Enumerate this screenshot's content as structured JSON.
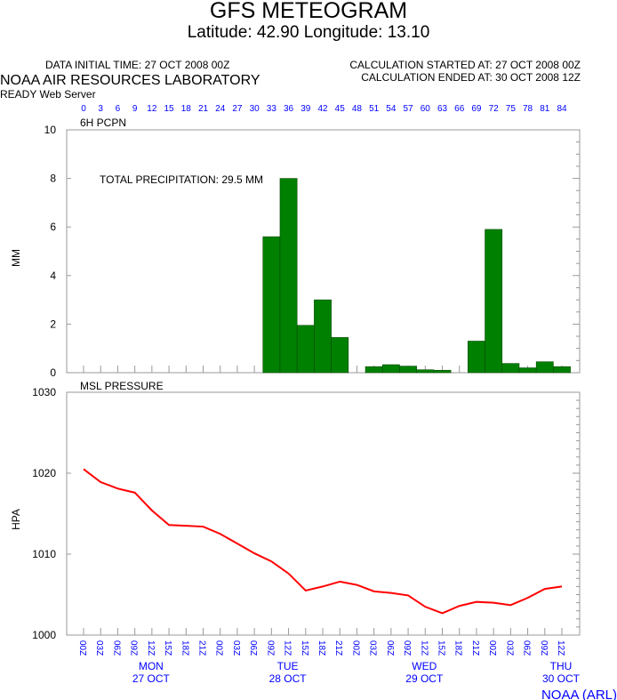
{
  "header": {
    "title": "GFS METEOGRAM",
    "subtitle": "Latitude: 42.90 Longitude:  13.10",
    "data_initial_time": "DATA INITIAL TIME: 27 OCT 2008 00Z",
    "calc_started": "CALCULATION STARTED AT: 27 OCT 2008 00Z",
    "calc_ended": "CALCULATION ENDED AT: 30 OCT 2008 12Z",
    "org": "NOAA AIR RESOURCES LABORATORY",
    "server": "READY Web Server"
  },
  "footer": {
    "credit": "NOAA (ARL)"
  },
  "colors": {
    "bar": "#008000",
    "line": "#ff0000",
    "axis_labels": "#0000ff",
    "frame": "#999999"
  },
  "chart_data": [
    {
      "type": "bar",
      "title": "6H PCPN",
      "ylabel": "MM",
      "annotation": "TOTAL PRECIPITATION:  29.5 MM",
      "ylim": [
        0,
        10
      ],
      "yticks": [
        0,
        2,
        4,
        6,
        8,
        10
      ],
      "x_top_tick_labels": [
        "0",
        "3",
        "6",
        "9",
        "12",
        "15",
        "18",
        "21",
        "24",
        "27",
        "30",
        "33",
        "36",
        "39",
        "42",
        "45",
        "48",
        "51",
        "54",
        "57",
        "60",
        "63",
        "66",
        "69",
        "72",
        "75",
        "78",
        "81",
        "84"
      ],
      "x_hours": [
        33,
        36,
        39,
        42,
        45,
        51,
        54,
        57,
        60,
        63,
        69,
        72,
        75,
        78,
        81,
        84
      ],
      "values": [
        5.6,
        8.0,
        1.95,
        3.0,
        1.45,
        0.25,
        0.33,
        0.27,
        0.12,
        0.1,
        1.3,
        5.9,
        0.38,
        0.2,
        0.45,
        0.25
      ]
    },
    {
      "type": "line",
      "title": "MSL PRESSURE",
      "ylabel": "HPA",
      "ylim": [
        1000,
        1030
      ],
      "yticks": [
        1000,
        1010,
        1020,
        1030
      ],
      "x_hours": [
        0,
        3,
        6,
        9,
        12,
        15,
        18,
        21,
        24,
        27,
        30,
        33,
        36,
        39,
        42,
        45,
        48,
        51,
        54,
        57,
        60,
        63,
        66,
        69,
        72,
        75,
        78,
        81,
        84
      ],
      "values": [
        1020.5,
        1018.9,
        1018.1,
        1017.6,
        1015.4,
        1013.6,
        1013.5,
        1013.4,
        1012.5,
        1011.3,
        1010.1,
        1009.1,
        1007.6,
        1005.5,
        1006.0,
        1006.6,
        1006.2,
        1005.4,
        1005.2,
        1004.9,
        1003.5,
        1002.7,
        1003.6,
        1004.1,
        1004.0,
        1003.7,
        1004.6,
        1005.7,
        1006.0
      ],
      "x_tick_labels": [
        "00Z",
        "03Z",
        "06Z",
        "09Z",
        "12Z",
        "15Z",
        "18Z",
        "21Z",
        "00Z",
        "03Z",
        "06Z",
        "09Z",
        "12Z",
        "15Z",
        "18Z",
        "21Z",
        "00Z",
        "03Z",
        "06Z",
        "09Z",
        "12Z",
        "15Z",
        "18Z",
        "21Z",
        "00Z",
        "03Z",
        "06Z",
        "09Z",
        "12Z"
      ],
      "day_labels": [
        {
          "hour": 12,
          "day": "MON",
          "date": "27 OCT"
        },
        {
          "hour": 36,
          "day": "TUE",
          "date": "28 OCT"
        },
        {
          "hour": 60,
          "day": "WED",
          "date": "29 OCT"
        },
        {
          "hour": 84,
          "day": "THU",
          "date": "30 OCT"
        }
      ]
    }
  ]
}
